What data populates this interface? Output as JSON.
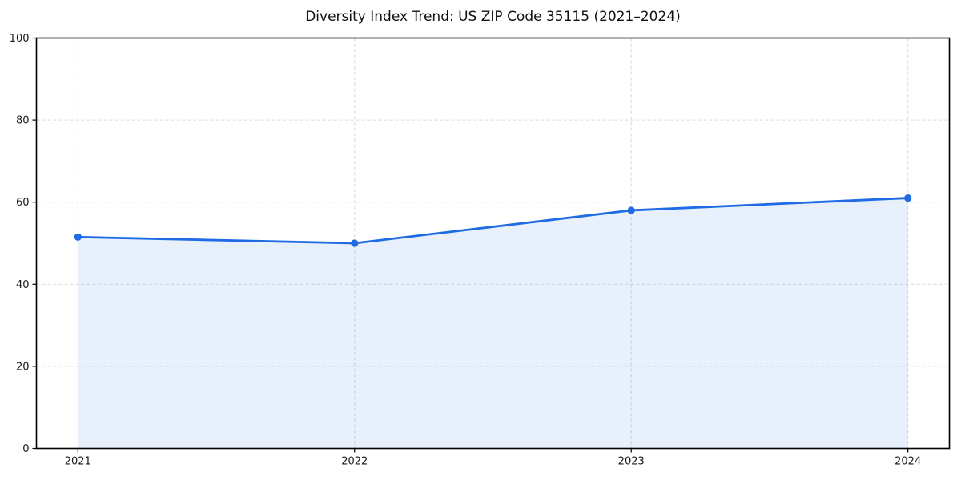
{
  "chart_data": {
    "type": "area",
    "title": "Diversity Index Trend: US ZIP Code 35115 (2021–2024)",
    "series_name": "Diversity Index",
    "x": [
      2021,
      2022,
      2023,
      2024
    ],
    "values": [
      51.5,
      50.0,
      58.0,
      61.0
    ],
    "xlabel": "",
    "ylabel": "",
    "xlim": [
      2020.85,
      2024.15
    ],
    "ylim": [
      0,
      100
    ],
    "xticks": [
      "2021",
      "2022",
      "2023",
      "2024"
    ],
    "xtick_values": [
      2021,
      2022,
      2023,
      2024
    ],
    "yticks": [
      "0",
      "20",
      "40",
      "60",
      "80",
      "100"
    ],
    "ytick_values": [
      0,
      20,
      40,
      60,
      80,
      100
    ],
    "grid": true,
    "grid_style": "dashed",
    "legend_position": "none",
    "colors": {
      "line": "#1e6be4",
      "marker": "#1e6be4",
      "fill": "#1e6be4",
      "fill_opacity": "0.1",
      "grid": "#d9d9d9",
      "spine": "#000000",
      "tick_label": "#1a1a1a",
      "title": "#111111",
      "background": "#ffffff"
    }
  }
}
